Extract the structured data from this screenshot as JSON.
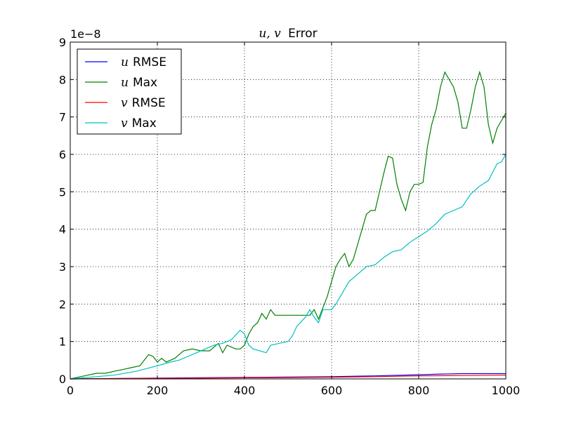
{
  "chart_data": {
    "type": "line",
    "title": "u, v Error",
    "title_parts": {
      "math": "u, v",
      "text": "Error"
    },
    "xlabel": "",
    "ylabel": "",
    "offset_text": "1e−8",
    "xlim": [
      0,
      1000
    ],
    "ylim": [
      0,
      9
    ],
    "x_ticks": [
      0,
      200,
      400,
      600,
      800,
      1000
    ],
    "y_ticks": [
      0,
      1,
      2,
      3,
      4,
      5,
      6,
      7,
      8,
      9
    ],
    "grid": true,
    "legend_position": "top-left",
    "series": [
      {
        "name": "u RMSE",
        "legend": {
          "math": "u",
          "text": "RMSE"
        },
        "color": "#0000ff",
        "points": [
          [
            0,
            0
          ],
          [
            100,
            0.01
          ],
          [
            200,
            0.02
          ],
          [
            300,
            0.03
          ],
          [
            400,
            0.04
          ],
          [
            500,
            0.05
          ],
          [
            600,
            0.06
          ],
          [
            700,
            0.08
          ],
          [
            800,
            0.11
          ],
          [
            850,
            0.13
          ],
          [
            900,
            0.14
          ],
          [
            1000,
            0.14
          ]
        ]
      },
      {
        "name": "u Max",
        "legend": {
          "math": "u",
          "text": "Max"
        },
        "color": "#008000",
        "points": [
          [
            0,
            0
          ],
          [
            20,
            0.05
          ],
          [
            40,
            0.1
          ],
          [
            60,
            0.15
          ],
          [
            80,
            0.15
          ],
          [
            100,
            0.2
          ],
          [
            120,
            0.25
          ],
          [
            140,
            0.3
          ],
          [
            160,
            0.35
          ],
          [
            170,
            0.5
          ],
          [
            180,
            0.65
          ],
          [
            190,
            0.6
          ],
          [
            200,
            0.45
          ],
          [
            210,
            0.55
          ],
          [
            220,
            0.45
          ],
          [
            240,
            0.55
          ],
          [
            260,
            0.75
          ],
          [
            280,
            0.8
          ],
          [
            300,
            0.75
          ],
          [
            320,
            0.75
          ],
          [
            330,
            0.85
          ],
          [
            340,
            0.95
          ],
          [
            350,
            0.7
          ],
          [
            360,
            0.9
          ],
          [
            370,
            0.85
          ],
          [
            380,
            0.8
          ],
          [
            390,
            0.8
          ],
          [
            400,
            0.9
          ],
          [
            410,
            1.2
          ],
          [
            420,
            1.4
          ],
          [
            430,
            1.5
          ],
          [
            440,
            1.75
          ],
          [
            450,
            1.6
          ],
          [
            460,
            1.85
          ],
          [
            470,
            1.7
          ],
          [
            480,
            1.7
          ],
          [
            500,
            1.7
          ],
          [
            520,
            1.7
          ],
          [
            540,
            1.7
          ],
          [
            550,
            1.7
          ],
          [
            560,
            1.85
          ],
          [
            570,
            1.6
          ],
          [
            580,
            1.9
          ],
          [
            590,
            2.2
          ],
          [
            600,
            2.6
          ],
          [
            610,
            3.0
          ],
          [
            620,
            3.2
          ],
          [
            630,
            3.35
          ],
          [
            640,
            3.0
          ],
          [
            650,
            3.2
          ],
          [
            660,
            3.6
          ],
          [
            670,
            4.0
          ],
          [
            680,
            4.4
          ],
          [
            690,
            4.5
          ],
          [
            700,
            4.5
          ],
          [
            710,
            5.0
          ],
          [
            720,
            5.5
          ],
          [
            730,
            5.95
          ],
          [
            740,
            5.9
          ],
          [
            750,
            5.2
          ],
          [
            760,
            4.8
          ],
          [
            770,
            4.5
          ],
          [
            780,
            5.0
          ],
          [
            790,
            5.2
          ],
          [
            800,
            5.2
          ],
          [
            810,
            5.25
          ],
          [
            820,
            6.2
          ],
          [
            830,
            6.8
          ],
          [
            840,
            7.2
          ],
          [
            850,
            7.8
          ],
          [
            860,
            8.2
          ],
          [
            870,
            8.0
          ],
          [
            880,
            7.8
          ],
          [
            890,
            7.4
          ],
          [
            900,
            6.7
          ],
          [
            910,
            6.7
          ],
          [
            920,
            7.2
          ],
          [
            930,
            7.8
          ],
          [
            940,
            8.2
          ],
          [
            950,
            7.8
          ],
          [
            960,
            6.8
          ],
          [
            970,
            6.3
          ],
          [
            980,
            6.7
          ],
          [
            990,
            6.9
          ],
          [
            1000,
            7.1
          ]
        ]
      },
      {
        "name": "v RMSE",
        "legend": {
          "math": "v",
          "text": "RMSE"
        },
        "color": "#ff0000",
        "points": [
          [
            0,
            0
          ],
          [
            100,
            0.01
          ],
          [
            200,
            0.015
          ],
          [
            300,
            0.02
          ],
          [
            400,
            0.03
          ],
          [
            500,
            0.035
          ],
          [
            600,
            0.045
          ],
          [
            700,
            0.06
          ],
          [
            800,
            0.08
          ],
          [
            900,
            0.09
          ],
          [
            1000,
            0.1
          ]
        ]
      },
      {
        "name": "v Max",
        "legend": {
          "math": "v",
          "text": "Max"
        },
        "color": "#00bfbf",
        "points": [
          [
            0,
            0
          ],
          [
            50,
            0.05
          ],
          [
            100,
            0.1
          ],
          [
            150,
            0.2
          ],
          [
            200,
            0.35
          ],
          [
            230,
            0.45
          ],
          [
            250,
            0.5
          ],
          [
            270,
            0.6
          ],
          [
            290,
            0.7
          ],
          [
            310,
            0.8
          ],
          [
            330,
            0.9
          ],
          [
            350,
            0.95
          ],
          [
            370,
            1.05
          ],
          [
            390,
            1.3
          ],
          [
            400,
            1.2
          ],
          [
            410,
            0.9
          ],
          [
            420,
            0.8
          ],
          [
            450,
            0.7
          ],
          [
            460,
            0.9
          ],
          [
            480,
            0.95
          ],
          [
            500,
            1.0
          ],
          [
            510,
            1.15
          ],
          [
            520,
            1.4
          ],
          [
            540,
            1.65
          ],
          [
            550,
            1.85
          ],
          [
            560,
            1.65
          ],
          [
            570,
            1.5
          ],
          [
            580,
            1.85
          ],
          [
            600,
            1.85
          ],
          [
            610,
            2.0
          ],
          [
            620,
            2.2
          ],
          [
            640,
            2.6
          ],
          [
            660,
            2.8
          ],
          [
            680,
            3.0
          ],
          [
            700,
            3.05
          ],
          [
            720,
            3.25
          ],
          [
            740,
            3.4
          ],
          [
            760,
            3.45
          ],
          [
            780,
            3.65
          ],
          [
            800,
            3.8
          ],
          [
            820,
            3.95
          ],
          [
            840,
            4.15
          ],
          [
            860,
            4.4
          ],
          [
            880,
            4.5
          ],
          [
            900,
            4.6
          ],
          [
            920,
            4.95
          ],
          [
            940,
            5.15
          ],
          [
            960,
            5.3
          ],
          [
            980,
            5.75
          ],
          [
            990,
            5.8
          ],
          [
            1000,
            6.0
          ]
        ]
      }
    ]
  }
}
